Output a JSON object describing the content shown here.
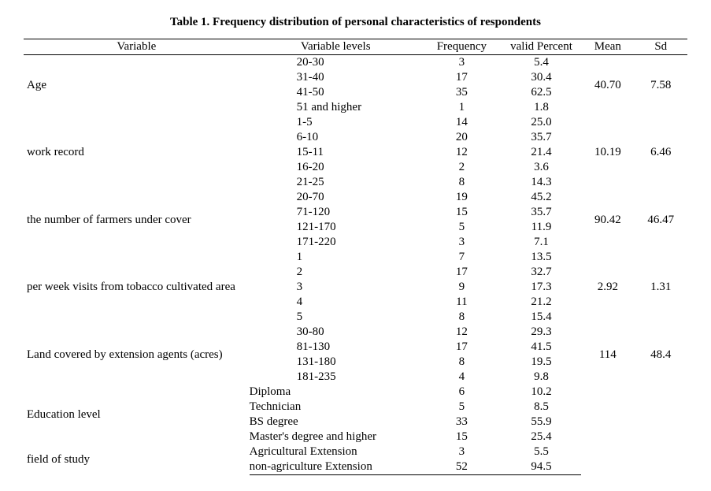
{
  "title": "Table 1. Frequency distribution of personal characteristics of respondents",
  "columns": {
    "c0": "Variable",
    "c1": "Variable levels",
    "c2": "Frequency",
    "c3": "valid Percent",
    "c4": "Mean",
    "c5": "Sd"
  },
  "groups": [
    {
      "variable": "Age",
      "mean": "40.70",
      "sd": "7.58",
      "statRow": 1,
      "levels": [
        {
          "label": "20-30",
          "freq": "3",
          "pct": "5.4"
        },
        {
          "label": "31-40",
          "freq": "17",
          "pct": "30.4"
        },
        {
          "label": "41-50",
          "freq": "35",
          "pct": "62.5"
        },
        {
          "label": "51 and higher",
          "freq": "1",
          "pct": "1.8"
        }
      ]
    },
    {
      "variable": "work record",
      "mean": "10.19",
      "sd": "6.46",
      "statRow": 2,
      "levels": [
        {
          "label": "1-5",
          "freq": "14",
          "pct": "25.0"
        },
        {
          "label": "6-10",
          "freq": "20",
          "pct": "35.7"
        },
        {
          "label": "15-11",
          "freq": "12",
          "pct": "21.4"
        },
        {
          "label": "16-20",
          "freq": "2",
          "pct": "3.6"
        },
        {
          "label": "21-25",
          "freq": "8",
          "pct": "14.3"
        }
      ]
    },
    {
      "variable": "the number of farmers under cover",
      "mean": "90.42",
      "sd": "46.47",
      "statRow": 1,
      "levels": [
        {
          "label": "20-70",
          "freq": "19",
          "pct": "45.2"
        },
        {
          "label": "71-120",
          "freq": "15",
          "pct": "35.7"
        },
        {
          "label": "121-170",
          "freq": "5",
          "pct": "11.9"
        },
        {
          "label": "171-220",
          "freq": "3",
          "pct": "7.1"
        }
      ]
    },
    {
      "variable": "per week visits from tobacco cultivated area",
      "mean": "2.92",
      "sd": "1.31",
      "statRow": 2,
      "levels": [
        {
          "label": "1",
          "freq": "7",
          "pct": "13.5"
        },
        {
          "label": "2",
          "freq": "17",
          "pct": "32.7"
        },
        {
          "label": "3",
          "freq": "9",
          "pct": "17.3"
        },
        {
          "label": "4",
          "freq": "11",
          "pct": "21.2"
        },
        {
          "label": "5",
          "freq": "8",
          "pct": "15.4"
        }
      ]
    },
    {
      "variable": "Land covered by extension agents (acres)",
      "mean": "114",
      "sd": "48.4",
      "statRow": 1,
      "levels": [
        {
          "label": "30-80",
          "freq": "12",
          "pct": "29.3"
        },
        {
          "label": "81-130",
          "freq": "17",
          "pct": "41.5"
        },
        {
          "label": "131-180",
          "freq": "8",
          "pct": "19.5"
        },
        {
          "label": "181-235",
          "freq": "4",
          "pct": "9.8"
        }
      ]
    },
    {
      "variable": "Education level",
      "mean": "",
      "sd": "",
      "statRow": 1,
      "shiftLeft": true,
      "levels": [
        {
          "label": "Diploma",
          "freq": "6",
          "pct": "10.2"
        },
        {
          "label": "Technician",
          "freq": "5",
          "pct": "8.5"
        },
        {
          "label": "BS degree",
          "freq": "33",
          "pct": "55.9"
        },
        {
          "label": "Master's degree and higher",
          "freq": "15",
          "pct": "25.4"
        }
      ]
    },
    {
      "variable": "field of study",
      "mean": "",
      "sd": "",
      "statRow": 0,
      "shiftLeft": true,
      "levels": [
        {
          "label": "Agricultural Extension",
          "freq": "3",
          "pct": "5.5"
        },
        {
          "label": "non-agriculture Extension",
          "freq": "52",
          "pct": "94.5"
        }
      ]
    }
  ]
}
